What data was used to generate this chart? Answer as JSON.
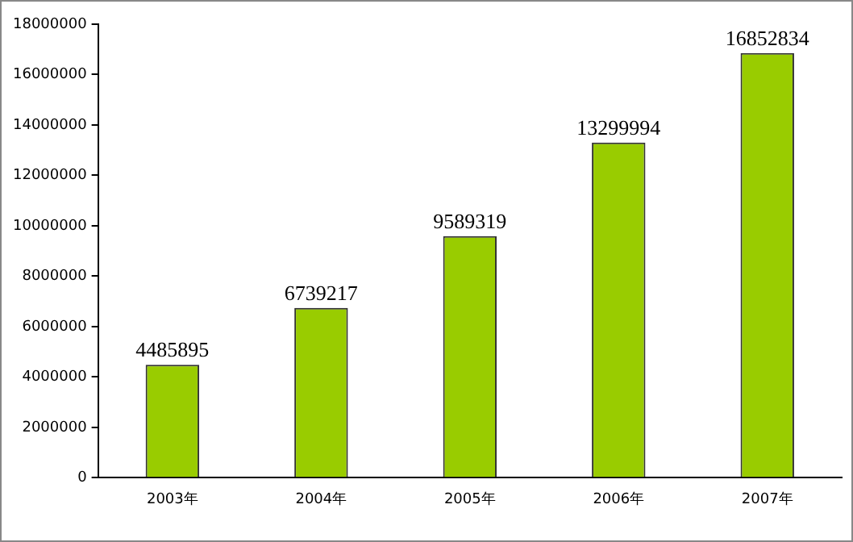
{
  "chart_data": {
    "type": "bar",
    "categories": [
      "2003年",
      "2004年",
      "2005年",
      "2006年",
      "2007年"
    ],
    "values": [
      4485895,
      6739217,
      9589319,
      13299994,
      16852834
    ],
    "color": "#99cc00",
    "ylim": [
      0,
      18000000
    ],
    "yticks": [
      0,
      2000000,
      4000000,
      6000000,
      8000000,
      10000000,
      12000000,
      14000000,
      16000000,
      18000000
    ],
    "grid": false,
    "data_labels": true
  }
}
